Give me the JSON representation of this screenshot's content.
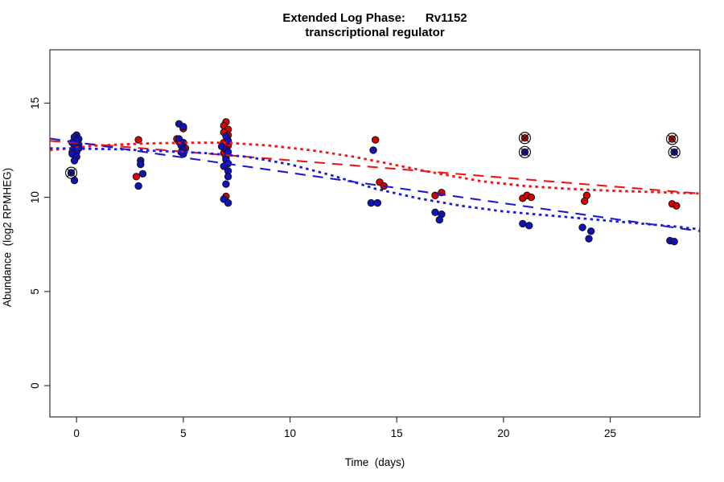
{
  "figure": {
    "title_line1": "Extended Log Phase:      Rv1152",
    "title_line2": "transcriptional regulator",
    "xlabel": "Time  (days)",
    "ylabel": "Abundance  (log2 RPMHEG)"
  },
  "chart_data": {
    "type": "scatter",
    "title": "Extended Log Phase: Rv1152 transcriptional regulator",
    "xlabel": "Time (days)",
    "ylabel": "Abundance (log2 RPMHEG)",
    "xlim": [
      -1.25,
      29.2
    ],
    "ylim": [
      -1.66,
      17.83
    ],
    "x_ticks": [
      0,
      5,
      10,
      15,
      20,
      25
    ],
    "y_ticks": [
      0,
      5,
      10,
      15
    ],
    "grid": false,
    "legend": "none",
    "colors": {
      "red": "#dd0000",
      "blue": "#1212bd",
      "red_line": "#f01515",
      "blue_line": "#1c1ccf",
      "outline": "#111111",
      "axis": "#333333"
    },
    "series": [
      {
        "name": "red-replicates",
        "type": "points",
        "color_key": "red",
        "points": [
          [
            -0.2,
            12.4
          ],
          [
            2.9,
            13.05
          ],
          [
            2.8,
            11.1
          ],
          [
            5.0,
            13.65
          ],
          [
            4.7,
            13.1
          ],
          [
            4.8,
            12.95
          ],
          [
            5.1,
            12.6
          ],
          [
            7.0,
            14.0
          ],
          [
            6.9,
            13.8
          ],
          [
            7.1,
            13.6
          ],
          [
            6.9,
            13.45
          ],
          [
            7.1,
            13.3
          ],
          [
            6.9,
            12.9
          ],
          [
            7.1,
            12.75
          ],
          [
            6.9,
            12.35
          ],
          [
            7.0,
            12.1
          ],
          [
            7.0,
            10.05
          ],
          [
            14.0,
            13.05
          ],
          [
            14.2,
            10.8
          ],
          [
            14.4,
            10.6
          ],
          [
            16.8,
            10.1
          ],
          [
            17.1,
            10.25
          ],
          [
            20.9,
            9.95
          ],
          [
            21.1,
            10.1
          ],
          [
            21.3,
            10.0
          ],
          [
            23.9,
            10.1
          ],
          [
            23.8,
            9.8
          ],
          [
            27.9,
            9.65
          ],
          [
            28.1,
            9.55
          ]
        ]
      },
      {
        "name": "blue-replicates",
        "type": "points",
        "color_key": "blue",
        "points": [
          [
            0.0,
            13.3
          ],
          [
            -0.1,
            13.2
          ],
          [
            0.1,
            13.1
          ],
          [
            0.0,
            13.0
          ],
          [
            -0.2,
            12.9
          ],
          [
            0.1,
            12.8
          ],
          [
            -0.1,
            12.7
          ],
          [
            0.1,
            12.6
          ],
          [
            -0.1,
            12.5
          ],
          [
            0.0,
            12.4
          ],
          [
            -0.2,
            12.3
          ],
          [
            0.0,
            12.15
          ],
          [
            -0.1,
            11.95
          ],
          [
            -0.1,
            10.9
          ],
          [
            3.0,
            11.95
          ],
          [
            3.0,
            11.75
          ],
          [
            3.1,
            11.25
          ],
          [
            2.9,
            10.6
          ],
          [
            4.8,
            13.9
          ],
          [
            5.0,
            13.75
          ],
          [
            4.8,
            13.1
          ],
          [
            5.0,
            12.9
          ],
          [
            4.9,
            12.75
          ],
          [
            5.0,
            12.55
          ],
          [
            4.9,
            12.4
          ],
          [
            5.0,
            12.3
          ],
          [
            7.0,
            13.25
          ],
          [
            7.1,
            13.0
          ],
          [
            6.8,
            12.7
          ],
          [
            7.0,
            12.55
          ],
          [
            7.1,
            12.4
          ],
          [
            7.0,
            12.0
          ],
          [
            7.1,
            11.8
          ],
          [
            6.9,
            11.65
          ],
          [
            7.1,
            11.4
          ],
          [
            7.1,
            11.1
          ],
          [
            7.0,
            10.7
          ],
          [
            6.9,
            9.9
          ],
          [
            7.1,
            9.7
          ],
          [
            13.9,
            12.5
          ],
          [
            13.8,
            9.7
          ],
          [
            14.1,
            9.7
          ],
          [
            16.8,
            9.2
          ],
          [
            17.1,
            9.1
          ],
          [
            17.0,
            8.8
          ],
          [
            20.9,
            8.6
          ],
          [
            21.2,
            8.5
          ],
          [
            23.7,
            8.4
          ],
          [
            24.1,
            8.2
          ],
          [
            24.0,
            7.8
          ],
          [
            27.8,
            7.7
          ],
          [
            28.0,
            7.65
          ]
        ]
      },
      {
        "name": "red-outliers-circled",
        "type": "circled-points",
        "color_key": "red",
        "points": [
          [
            21.0,
            13.15
          ],
          [
            27.9,
            13.1
          ]
        ]
      },
      {
        "name": "blue-outliers-circled",
        "type": "circled-points",
        "color_key": "blue",
        "points": [
          [
            -0.25,
            11.3
          ],
          [
            21.0,
            12.4
          ],
          [
            28.0,
            12.4
          ]
        ]
      }
    ],
    "lines": [
      {
        "name": "red-linear-fit",
        "style": "dashed",
        "color_key": "red_line",
        "points": [
          [
            -1.25,
            13.0
          ],
          [
            29.2,
            10.2
          ]
        ]
      },
      {
        "name": "blue-linear-fit",
        "style": "dashed",
        "color_key": "blue_line",
        "points": [
          [
            -1.25,
            13.12
          ],
          [
            29.2,
            8.2
          ]
        ]
      },
      {
        "name": "red-loess-fit",
        "style": "dotted",
        "color_key": "red_line",
        "points": [
          [
            -1.25,
            12.5
          ],
          [
            1,
            12.75
          ],
          [
            3,
            12.85
          ],
          [
            5,
            12.9
          ],
          [
            7,
            12.9
          ],
          [
            9,
            12.75
          ],
          [
            11,
            12.5
          ],
          [
            13,
            12.15
          ],
          [
            15,
            11.7
          ],
          [
            17,
            11.25
          ],
          [
            19,
            10.85
          ],
          [
            21,
            10.6
          ],
          [
            23,
            10.45
          ],
          [
            25,
            10.35
          ],
          [
            27,
            10.28
          ],
          [
            29.2,
            10.2
          ]
        ]
      },
      {
        "name": "blue-loess-fit",
        "style": "dotted",
        "color_key": "blue_line",
        "points": [
          [
            -1.25,
            12.6
          ],
          [
            2,
            12.55
          ],
          [
            4,
            12.45
          ],
          [
            6,
            12.35
          ],
          [
            8,
            12.15
          ],
          [
            10,
            11.75
          ],
          [
            12,
            11.15
          ],
          [
            14,
            10.45
          ],
          [
            16,
            9.95
          ],
          [
            18,
            9.55
          ],
          [
            20,
            9.25
          ],
          [
            22,
            9.05
          ],
          [
            24,
            8.85
          ],
          [
            26,
            8.65
          ],
          [
            28,
            8.45
          ],
          [
            29.2,
            8.3
          ]
        ]
      }
    ]
  }
}
